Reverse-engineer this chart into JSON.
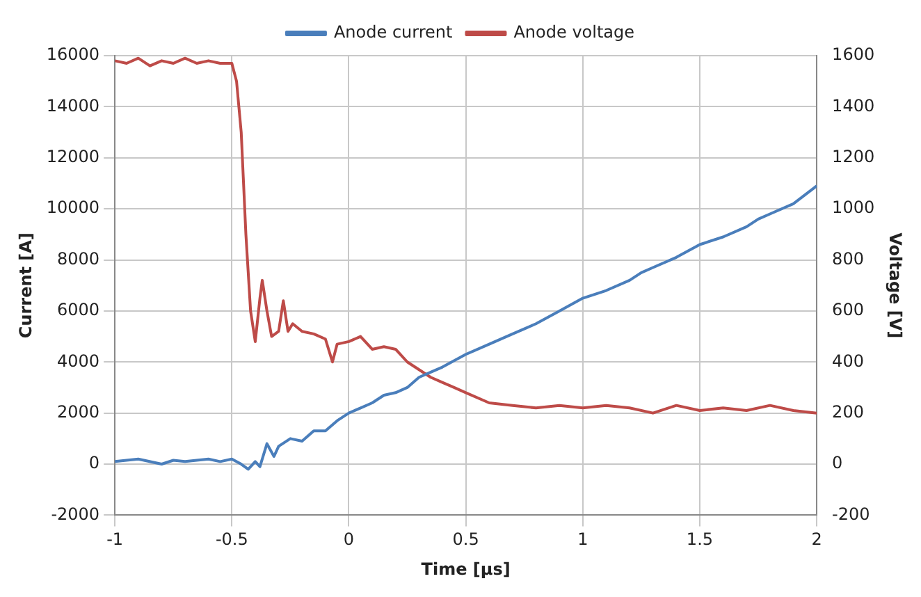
{
  "chart_data": {
    "type": "line",
    "xlabel": "Time [µs]",
    "ylabel": "Current [A]",
    "y2label": "Voltage [V]",
    "xlim": [
      -1,
      2
    ],
    "xticks": [
      -1,
      -0.5,
      0,
      0.5,
      1,
      1.5,
      2
    ],
    "ylim": [
      -2000,
      16000
    ],
    "yticks": [
      -2000,
      0,
      2000,
      4000,
      6000,
      8000,
      10000,
      12000,
      14000,
      16000
    ],
    "y2lim": [
      -200,
      1600
    ],
    "y2ticks": [
      -200,
      0,
      200,
      400,
      600,
      800,
      1000,
      1200,
      1400,
      1600
    ],
    "grid": true,
    "legend": "top",
    "marker": "none",
    "line_style": "solid",
    "series": [
      {
        "name": "Anode current",
        "color": "#4a7ebb",
        "x": [
          -1,
          -0.9,
          -0.8,
          -0.75,
          -0.7,
          -0.6,
          -0.55,
          -0.5,
          -0.46,
          -0.43,
          -0.4,
          -0.38,
          -0.35,
          -0.32,
          -0.3,
          -0.25,
          -0.2,
          -0.15,
          -0.1,
          -0.05,
          0,
          0.05,
          0.1,
          0.15,
          0.2,
          0.25,
          0.3,
          0.35,
          0.4,
          0.5,
          0.6,
          0.7,
          0.75,
          0.8,
          0.9,
          1,
          1.1,
          1.2,
          1.25,
          1.3,
          1.4,
          1.5,
          1.6,
          1.7,
          1.75,
          1.8,
          1.9,
          2
        ],
        "values": [
          100,
          200,
          0,
          150,
          100,
          200,
          100,
          200,
          0,
          -200,
          100,
          -100,
          800,
          300,
          700,
          1000,
          900,
          1300,
          1300,
          1700,
          2000,
          2200,
          2400,
          2700,
          2800,
          3000,
          3400,
          3600,
          3800,
          4300,
          4700,
          5100,
          5300,
          5500,
          6000,
          6500,
          6800,
          7200,
          7500,
          7700,
          8100,
          8600,
          8900,
          9300,
          9600,
          9800,
          10200,
          10900
        ]
      },
      {
        "name": "Anode voltage",
        "color": "#be4b48",
        "axis": "y2",
        "x": [
          -1,
          -0.95,
          -0.9,
          -0.85,
          -0.8,
          -0.75,
          -0.7,
          -0.65,
          -0.6,
          -0.55,
          -0.5,
          -0.48,
          -0.46,
          -0.44,
          -0.42,
          -0.4,
          -0.38,
          -0.37,
          -0.35,
          -0.33,
          -0.3,
          -0.28,
          -0.26,
          -0.24,
          -0.2,
          -0.15,
          -0.1,
          -0.07,
          -0.05,
          0,
          0.05,
          0.1,
          0.15,
          0.2,
          0.25,
          0.3,
          0.35,
          0.4,
          0.45,
          0.5,
          0.6,
          0.7,
          0.8,
          0.9,
          1,
          1.1,
          1.2,
          1.3,
          1.4,
          1.5,
          1.6,
          1.7,
          1.8,
          1.9,
          2
        ],
        "values": [
          1580,
          1570,
          1590,
          1560,
          1580,
          1570,
          1590,
          1570,
          1580,
          1570,
          1570,
          1500,
          1300,
          900,
          600,
          480,
          650,
          720,
          600,
          500,
          520,
          640,
          520,
          550,
          520,
          510,
          490,
          400,
          470,
          480,
          500,
          450,
          460,
          450,
          400,
          370,
          340,
          320,
          300,
          280,
          240,
          230,
          220,
          230,
          220,
          230,
          220,
          200,
          230,
          210,
          220,
          210,
          230,
          210,
          200
        ]
      }
    ]
  }
}
